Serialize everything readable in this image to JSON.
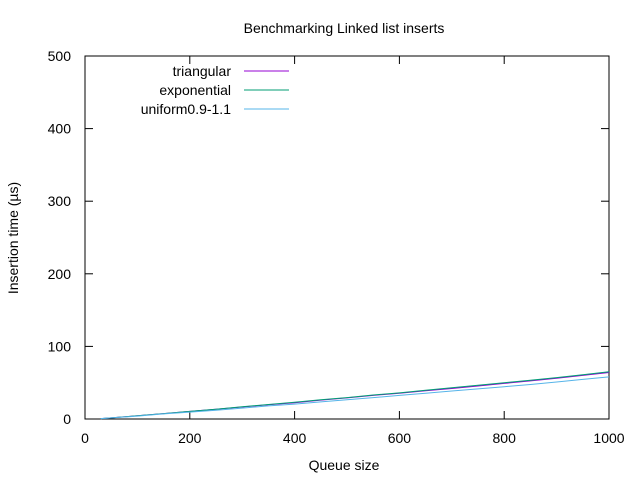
{
  "chart_data": {
    "type": "line",
    "title": "Benchmarking Linked list inserts",
    "xlabel": "Queue size",
    "ylabel": "Insertion time (µs)",
    "xlim": [
      0,
      1000
    ],
    "ylim": [
      0,
      500
    ],
    "xticks": [
      "0",
      "200",
      "400",
      "600",
      "800",
      "1000"
    ],
    "yticks": [
      "0",
      "100",
      "200",
      "300",
      "400",
      "500"
    ],
    "xtick_values": [
      0,
      200,
      400,
      600,
      800,
      1000
    ],
    "ytick_values": [
      0,
      100,
      200,
      300,
      400,
      500
    ],
    "grid": false,
    "legend_position": "top-left",
    "series": [
      {
        "name": "triangular",
        "color": "#9400d3",
        "x": [
          30,
          50,
          100,
          150,
          200,
          250,
          300,
          350,
          400,
          450,
          500,
          550,
          600,
          650,
          700,
          750,
          800,
          850,
          900,
          950,
          1000
        ],
        "y": [
          0.5,
          1.5,
          4.5,
          7.5,
          10.5,
          13.5,
          16.5,
          19.5,
          22.5,
          26,
          29,
          32.5,
          35.5,
          39,
          42,
          45.5,
          49,
          52.5,
          56,
          60,
          64
        ]
      },
      {
        "name": "exponential",
        "color": "#009e73",
        "x": [
          30,
          50,
          100,
          150,
          200,
          250,
          300,
          350,
          400,
          450,
          500,
          550,
          600,
          650,
          700,
          750,
          800,
          850,
          900,
          950,
          1000
        ],
        "y": [
          0.5,
          1.5,
          4.5,
          7.5,
          10.5,
          13.5,
          17,
          20,
          23,
          26.5,
          29.5,
          33,
          36,
          39.5,
          43,
          46.5,
          50,
          53.5,
          57,
          61,
          65
        ]
      },
      {
        "name": "uniform0.9-1.1",
        "color": "#56b4e9",
        "x": [
          30,
          50,
          100,
          150,
          200,
          250,
          300,
          350,
          400,
          450,
          500,
          550,
          600,
          650,
          700,
          750,
          800,
          850,
          900,
          950,
          1000
        ],
        "y": [
          0.5,
          1.5,
          4,
          7,
          9.5,
          12,
          15,
          18,
          20.5,
          23.5,
          26.5,
          29.5,
          32.5,
          35.5,
          38.5,
          41.5,
          44.5,
          47.5,
          51,
          54.5,
          58
        ]
      }
    ]
  }
}
